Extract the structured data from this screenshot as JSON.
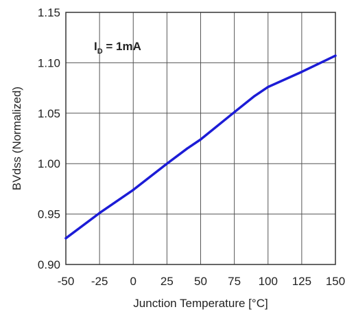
{
  "chart_data": {
    "type": "line",
    "xlabel": "Junction Temperature [°C]",
    "ylabel": "BVdss  (Normalized)",
    "xlim": [
      -50,
      150
    ],
    "ylim": [
      0.9,
      1.15
    ],
    "x_ticks": [
      -50,
      -25,
      0,
      25,
      50,
      75,
      100,
      125,
      150
    ],
    "y_ticks": [
      0.9,
      0.95,
      1.0,
      1.05,
      1.1,
      1.15
    ],
    "x_tick_labels": [
      "-50",
      "-25",
      "0",
      "25",
      "50",
      "75",
      "100",
      "125",
      "150"
    ],
    "y_tick_labels": [
      "0.90",
      "0.95",
      "1.00",
      "1.05",
      "1.10",
      "1.15"
    ],
    "grid": true,
    "annotation": {
      "main": "I",
      "subscript": "D",
      "rest": " = 1mA"
    },
    "series": [
      {
        "color": "#1c1cd6",
        "x": [
          -50,
          -25,
          0,
          25,
          40,
          50,
          75,
          90,
          100,
          125,
          150
        ],
        "y": [
          0.926,
          0.951,
          0.974,
          1.0,
          1.015,
          1.024,
          1.051,
          1.067,
          1.076,
          1.091,
          1.107
        ]
      }
    ]
  }
}
